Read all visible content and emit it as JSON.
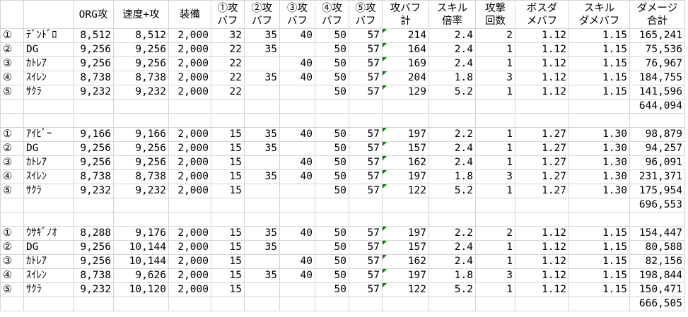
{
  "headers": [
    "",
    "",
    "ORG攻",
    "速度+攻",
    "装備",
    "①攻\nバフ",
    "②攻\nバフ",
    "③攻\nバフ",
    "④攻\nバフ",
    "⑤攻\nバフ",
    "攻バフ\n計",
    "スキル\n倍率",
    "攻撃\n回数",
    "ボスダ\nメバフ",
    "スキル\nダメバフ",
    "ダメージ\n合計"
  ],
  "comment_flag_color": "#0a7a0a",
  "groups": [
    {
      "rows": [
        [
          "①",
          "ﾃﾞﾝﾄﾞﾛ",
          "8,512",
          "8,512",
          "2,000",
          "32",
          "35",
          "40",
          "50",
          "57",
          "214",
          "2.4",
          "2",
          "1.12",
          "1.15",
          "165,241"
        ],
        [
          "②",
          "DG",
          "9,256",
          "9,256",
          "2,000",
          "22",
          "35",
          "",
          "50",
          "57",
          "164",
          "2.4",
          "1",
          "1.12",
          "1.15",
          "75,536"
        ],
        [
          "③",
          "ｶﾄﾚｱ",
          "9,256",
          "9,256",
          "2,000",
          "22",
          "",
          "40",
          "50",
          "57",
          "169",
          "2.4",
          "1",
          "1.12",
          "1.15",
          "76,967"
        ],
        [
          "④",
          "ｽｲﾚﾝ",
          "8,738",
          "8,738",
          "2,000",
          "22",
          "35",
          "40",
          "50",
          "57",
          "204",
          "1.8",
          "3",
          "1.12",
          "1.15",
          "184,755"
        ],
        [
          "⑤",
          "ｻｸﾗ",
          "9,232",
          "9,232",
          "2,000",
          "22",
          "",
          "",
          "50",
          "57",
          "129",
          "5.2",
          "1",
          "1.12",
          "1.15",
          "141,596"
        ]
      ],
      "total": "644,094"
    },
    {
      "rows": [
        [
          "①",
          "ｱｲﾋﾞｰ",
          "9,166",
          "9,166",
          "2,000",
          "15",
          "35",
          "40",
          "50",
          "57",
          "197",
          "2.2",
          "1",
          "1.27",
          "1.30",
          "98,879"
        ],
        [
          "②",
          "DG",
          "9,256",
          "9,256",
          "2,000",
          "15",
          "35",
          "",
          "50",
          "57",
          "157",
          "2.4",
          "1",
          "1.27",
          "1.30",
          "94,257"
        ],
        [
          "③",
          "ｶﾄﾚｱ",
          "9,256",
          "9,256",
          "2,000",
          "15",
          "",
          "40",
          "50",
          "57",
          "162",
          "2.4",
          "1",
          "1.27",
          "1.30",
          "96,091"
        ],
        [
          "④",
          "ｽｲﾚﾝ",
          "8,738",
          "8,738",
          "2,000",
          "15",
          "35",
          "40",
          "50",
          "57",
          "197",
          "1.8",
          "3",
          "1.27",
          "1.30",
          "231,371"
        ],
        [
          "⑤",
          "ｻｸﾗ",
          "9,232",
          "9,232",
          "2,000",
          "15",
          "",
          "",
          "50",
          "57",
          "122",
          "5.2",
          "1",
          "1.27",
          "1.30",
          "175,954"
        ]
      ],
      "total": "696,553"
    },
    {
      "rows": [
        [
          "①",
          "ｳｻｷﾞﾉｵ",
          "8,288",
          "9,176",
          "2,000",
          "15",
          "35",
          "40",
          "50",
          "57",
          "197",
          "2.2",
          "2",
          "1.12",
          "1.15",
          "154,447"
        ],
        [
          "②",
          "DG",
          "9,256",
          "10,144",
          "2,000",
          "15",
          "35",
          "",
          "50",
          "57",
          "157",
          "2.4",
          "1",
          "1.12",
          "1.15",
          "80,588"
        ],
        [
          "③",
          "ｶﾄﾚｱ",
          "9,256",
          "10,144",
          "2,000",
          "15",
          "",
          "40",
          "50",
          "57",
          "162",
          "2.4",
          "1",
          "1.12",
          "1.15",
          "82,156"
        ],
        [
          "④",
          "ｽｲﾚﾝ",
          "8,738",
          "9,626",
          "2,000",
          "15",
          "35",
          "40",
          "50",
          "57",
          "197",
          "1.8",
          "3",
          "1.12",
          "1.15",
          "198,844"
        ],
        [
          "⑤",
          "ｻｸﾗ",
          "9,232",
          "10,120",
          "2,000",
          "15",
          "",
          "",
          "50",
          "57",
          "122",
          "5.2",
          "1",
          "1.12",
          "1.15",
          "150,471"
        ]
      ],
      "total": "666,505"
    }
  ]
}
